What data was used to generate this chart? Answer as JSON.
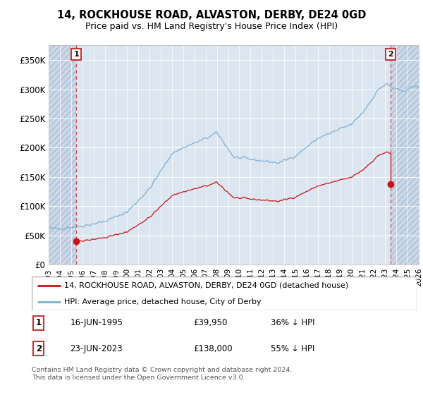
{
  "title": "14, ROCKHOUSE ROAD, ALVASTON, DERBY, DE24 0GD",
  "subtitle": "Price paid vs. HM Land Registry's House Price Index (HPI)",
  "hpi_color": "#7bafd4",
  "price_color": "#cc1111",
  "marker_color": "#cc1111",
  "bg_color": "#dce6f1",
  "ylim": [
    0,
    375000
  ],
  "yticks": [
    0,
    50000,
    100000,
    150000,
    200000,
    250000,
    300000,
    350000
  ],
  "ytick_labels": [
    "£0",
    "£50K",
    "£100K",
    "£150K",
    "£200K",
    "£250K",
    "£300K",
    "£350K"
  ],
  "xmin_year": 1993,
  "xmax_year": 2026,
  "purchase1": {
    "date_num": 1995.458,
    "price": 39950,
    "label": "1"
  },
  "purchase2": {
    "date_num": 2023.479,
    "price": 138000,
    "label": "2"
  },
  "legend_red": "14, ROCKHOUSE ROAD, ALVASTON, DERBY, DE24 0GD (detached house)",
  "legend_blue": "HPI: Average price, detached house, City of Derby",
  "table_rows": [
    {
      "num": "1",
      "date": "16-JUN-1995",
      "price": "£39,950",
      "note": "36% ↓ HPI"
    },
    {
      "num": "2",
      "date": "23-JUN-2023",
      "price": "£138,000",
      "note": "55% ↓ HPI"
    }
  ],
  "footer": "Contains HM Land Registry data © Crown copyright and database right 2024.\nThis data is licensed under the Open Government Licence v3.0.",
  "xticks": [
    1993,
    1994,
    1995,
    1996,
    1997,
    1998,
    1999,
    2000,
    2001,
    2002,
    2003,
    2004,
    2005,
    2006,
    2007,
    2008,
    2009,
    2010,
    2011,
    2012,
    2013,
    2014,
    2015,
    2016,
    2017,
    2018,
    2019,
    2020,
    2021,
    2022,
    2023,
    2024,
    2025,
    2026
  ]
}
